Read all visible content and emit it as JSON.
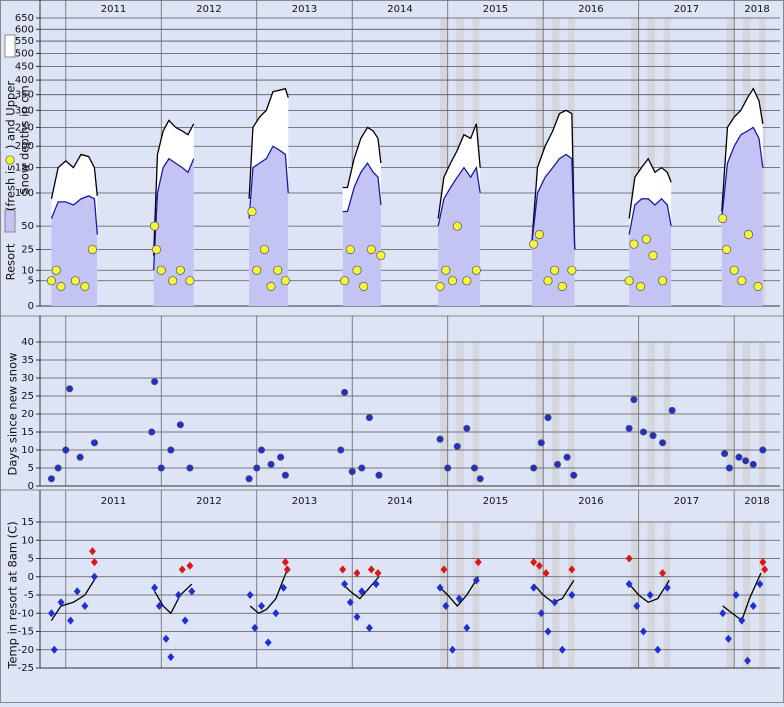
{
  "chart_data": [
    {
      "type": "line",
      "ylabel": [
        "Resort",
        "(fresh is",
        ")  and Upper",
        "Snow depths in cm"
      ],
      "scale": "sqrt",
      "xlim": [
        2010.73,
        2018.48
      ],
      "xticks": [
        2011,
        2012,
        2013,
        2014,
        2015,
        2016,
        2017,
        2018
      ],
      "ylim": [
        0,
        650
      ],
      "yticks": [
        0,
        5,
        10,
        25,
        50,
        100,
        150,
        200,
        250,
        300,
        350,
        400,
        450,
        500,
        550,
        600,
        650
      ],
      "grid": true,
      "highlight_bands": [
        [
          2014.92,
          2015.0
        ],
        [
          2015.09,
          2015.17
        ],
        [
          2015.26,
          2015.33
        ],
        [
          2015.92,
          2016.0
        ],
        [
          2016.09,
          2016.17
        ],
        [
          2016.26,
          2016.33
        ],
        [
          2016.92,
          2017.0
        ],
        [
          2017.09,
          2017.17
        ],
        [
          2017.26,
          2017.33
        ],
        [
          2017.92,
          2018.0
        ],
        [
          2018.09,
          2018.17
        ],
        [
          2018.26,
          2018.33
        ]
      ],
      "x": [
        2010.85,
        2010.92,
        2011.0,
        2011.08,
        2011.16,
        2011.24,
        2011.3,
        2011.33,
        2011.6,
        2011.92,
        2011.96,
        2012.02,
        2012.08,
        2012.15,
        2012.22,
        2012.28,
        2012.34,
        2012.6,
        2012.92,
        2012.96,
        2013.03,
        2013.1,
        2013.17,
        2013.24,
        2013.3,
        2013.33,
        2013.6,
        2013.9,
        2013.95,
        2014.02,
        2014.09,
        2014.16,
        2014.22,
        2014.27,
        2014.3,
        2014.6,
        2014.9,
        2014.96,
        2015.03,
        2015.1,
        2015.17,
        2015.24,
        2015.3,
        2015.34,
        2015.6,
        2015.88,
        2015.94,
        2016.02,
        2016.1,
        2016.17,
        2016.24,
        2016.3,
        2016.33,
        2016.6,
        2016.9,
        2016.96,
        2017.03,
        2017.1,
        2017.17,
        2017.24,
        2017.3,
        2017.34,
        2017.6,
        2017.87,
        2017.93,
        2018.0,
        2018.07,
        2018.14,
        2018.2,
        2018.26,
        2018.3
      ],
      "series": [
        {
          "type": "area",
          "color": "#000000",
          "fill": "#ffffff",
          "values": [
            90,
            150,
            165,
            150,
            180,
            175,
            150,
            95,
            null,
            20,
            180,
            240,
            270,
            250,
            240,
            230,
            260,
            null,
            90,
            250,
            280,
            300,
            360,
            365,
            370,
            340,
            null,
            110,
            110,
            170,
            220,
            250,
            240,
            220,
            160,
            null,
            60,
            130,
            160,
            190,
            230,
            220,
            260,
            150,
            null,
            30,
            150,
            200,
            240,
            290,
            300,
            290,
            25,
            null,
            60,
            130,
            150,
            170,
            140,
            150,
            140,
            120,
            null,
            70,
            250,
            280,
            300,
            340,
            370,
            330,
            260
          ]
        },
        {
          "type": "area",
          "color": "#1a1aa8",
          "fill": "#c4c4f4",
          "values": [
            60,
            85,
            85,
            80,
            90,
            95,
            90,
            40,
            null,
            10,
            100,
            150,
            170,
            160,
            150,
            140,
            170,
            null,
            60,
            150,
            160,
            170,
            200,
            190,
            180,
            100,
            null,
            70,
            70,
            110,
            140,
            160,
            140,
            130,
            80,
            null,
            50,
            90,
            110,
            130,
            150,
            130,
            150,
            100,
            null,
            30,
            100,
            130,
            150,
            170,
            180,
            170,
            25,
            null,
            40,
            80,
            90,
            90,
            80,
            90,
            80,
            50,
            null,
            60,
            160,
            200,
            230,
            240,
            250,
            220,
            150
          ]
        },
        {
          "type": "scatter",
          "marker": "circle",
          "color": "#f5f53a",
          "x": [
            2010.85,
            2010.9,
            2010.95,
            2011.1,
            2011.2,
            2011.28,
            2011.93,
            2011.95,
            2012.0,
            2012.12,
            2012.2,
            2012.3,
            2012.95,
            2013.0,
            2013.08,
            2013.15,
            2013.22,
            2013.3,
            2013.92,
            2013.98,
            2014.05,
            2014.12,
            2014.2,
            2014.3,
            2014.92,
            2014.98,
            2015.05,
            2015.1,
            2015.2,
            2015.3,
            2015.9,
            2015.96,
            2016.05,
            2016.12,
            2016.2,
            2016.3,
            2016.9,
            2016.95,
            2017.02,
            2017.08,
            2017.15,
            2017.25,
            2017.88,
            2017.92,
            2018.0,
            2018.08,
            2018.15,
            2018.25
          ],
          "values": [
            5,
            10,
            3,
            5,
            3,
            25,
            50,
            25,
            10,
            5,
            10,
            5,
            70,
            10,
            25,
            3,
            10,
            5,
            5,
            25,
            10,
            3,
            25,
            20,
            3,
            10,
            5,
            50,
            5,
            10,
            30,
            40,
            5,
            10,
            3,
            10,
            5,
            30,
            3,
            35,
            20,
            5,
            60,
            25,
            10,
            5,
            40,
            3
          ]
        }
      ]
    },
    {
      "type": "scatter",
      "ylabel": [
        "Days since new snow"
      ],
      "show_xtick_labels": false,
      "xlim": [
        2010.73,
        2018.48
      ],
      "xticks": [
        2011,
        2012,
        2013,
        2014,
        2015,
        2016,
        2017,
        2018
      ],
      "ylim": [
        0,
        40
      ],
      "yticks": [
        0,
        5,
        10,
        15,
        20,
        25,
        30,
        35,
        40
      ],
      "grid": true,
      "highlight_bands": [
        [
          2014.92,
          2015.0
        ],
        [
          2015.09,
          2015.17
        ],
        [
          2015.26,
          2015.33
        ],
        [
          2015.92,
          2016.0
        ],
        [
          2016.09,
          2016.17
        ],
        [
          2016.26,
          2016.33
        ],
        [
          2016.92,
          2017.0
        ],
        [
          2017.09,
          2017.17
        ],
        [
          2017.26,
          2017.33
        ],
        [
          2017.92,
          2018.0
        ],
        [
          2018.09,
          2018.17
        ],
        [
          2018.26,
          2018.33
        ]
      ],
      "series": [
        {
          "type": "scatter",
          "marker": "circle",
          "color": "#1f2fd0",
          "x": [
            2010.85,
            2010.92,
            2011.0,
            2011.04,
            2011.15,
            2011.3,
            2011.9,
            2011.93,
            2012.0,
            2012.1,
            2012.2,
            2012.3,
            2012.92,
            2013.0,
            2013.05,
            2013.15,
            2013.25,
            2013.3,
            2013.88,
            2013.92,
            2014.0,
            2014.1,
            2014.18,
            2014.28,
            2014.92,
            2015.0,
            2015.1,
            2015.2,
            2015.28,
            2015.34,
            2015.9,
            2015.98,
            2016.05,
            2016.15,
            2016.25,
            2016.32,
            2016.9,
            2016.95,
            2017.05,
            2017.15,
            2017.25,
            2017.35,
            2017.9,
            2017.95,
            2018.05,
            2018.12,
            2018.2,
            2018.3
          ],
          "values": [
            2,
            5,
            10,
            27,
            8,
            12,
            15,
            29,
            5,
            10,
            17,
            5,
            2,
            5,
            10,
            6,
            8,
            3,
            10,
            26,
            4,
            5,
            19,
            3,
            13,
            5,
            11,
            16,
            5,
            2,
            5,
            12,
            19,
            6,
            8,
            3,
            16,
            24,
            15,
            14,
            12,
            21,
            9,
            5,
            8,
            7,
            6,
            10
          ]
        }
      ]
    },
    {
      "type": "scatter",
      "ylabel": [
        "Temp in resort at 8am (C)"
      ],
      "xlim": [
        2010.73,
        2018.48
      ],
      "xticks": [
        2011,
        2012,
        2013,
        2014,
        2015,
        2016,
        2017,
        2018
      ],
      "ylim": [
        -25,
        15
      ],
      "yticks": [
        -25,
        -20,
        -15,
        -10,
        -5,
        0,
        5,
        10,
        15
      ],
      "grid": true,
      "highlight_bands": [
        [
          2014.92,
          2015.0
        ],
        [
          2015.09,
          2015.17
        ],
        [
          2015.26,
          2015.33
        ],
        [
          2015.92,
          2016.0
        ],
        [
          2016.09,
          2016.17
        ],
        [
          2016.26,
          2016.33
        ],
        [
          2016.92,
          2017.0
        ],
        [
          2017.09,
          2017.17
        ],
        [
          2017.26,
          2017.33
        ],
        [
          2017.92,
          2018.0
        ],
        [
          2018.09,
          2018.17
        ],
        [
          2018.26,
          2018.33
        ]
      ],
      "series": [
        {
          "type": "scatter",
          "marker": "diamond",
          "color": "#1f2fd0",
          "x": [
            2010.85,
            2010.88,
            2010.95,
            2011.05,
            2011.12,
            2011.2,
            2011.3,
            2011.93,
            2011.98,
            2012.05,
            2012.1,
            2012.18,
            2012.25,
            2012.32,
            2012.93,
            2012.98,
            2013.05,
            2013.12,
            2013.2,
            2013.28,
            2013.92,
            2013.98,
            2014.05,
            2014.1,
            2014.18,
            2014.25,
            2014.92,
            2014.98,
            2015.05,
            2015.12,
            2015.2,
            2015.3,
            2015.9,
            2015.98,
            2016.05,
            2016.12,
            2016.2,
            2016.3,
            2016.9,
            2016.98,
            2017.05,
            2017.12,
            2017.2,
            2017.3,
            2017.88,
            2017.94,
            2018.02,
            2018.08,
            2018.14,
            2018.2,
            2018.27
          ],
          "values": [
            -10,
            -20,
            -7,
            -12,
            -4,
            -8,
            0,
            -3,
            -8,
            -17,
            -22,
            -5,
            -12,
            -4,
            -5,
            -14,
            -8,
            -18,
            -10,
            -3,
            -2,
            -7,
            -11,
            -4,
            -14,
            -2,
            -3,
            -8,
            -20,
            -6,
            -14,
            -1,
            -3,
            -10,
            -15,
            -7,
            -20,
            -5,
            -2,
            -8,
            -15,
            -5,
            -20,
            -3,
            -10,
            -17,
            -5,
            -12,
            -23,
            -8,
            -2
          ]
        },
        {
          "type": "scatter",
          "marker": "diamond",
          "color": "#d81818",
          "x": [
            2011.28,
            2011.3,
            2012.22,
            2012.3,
            2013.3,
            2013.32,
            2013.9,
            2014.05,
            2014.2,
            2014.27,
            2014.96,
            2015.32,
            2015.9,
            2015.96,
            2016.03,
            2016.3,
            2016.9,
            2017.25,
            2018.3,
            2018.32
          ],
          "values": [
            7,
            4,
            2,
            3,
            4,
            2,
            2,
            1,
            2,
            1,
            2,
            4,
            4,
            3,
            1,
            2,
            5,
            1,
            4,
            2
          ]
        },
        {
          "type": "line",
          "color": "#000000",
          "x": [
            2010.85,
            2010.95,
            2011.08,
            2011.2,
            2011.32,
            2011.6,
            2011.93,
            2012.02,
            2012.1,
            2012.2,
            2012.32,
            2012.6,
            2012.93,
            2013.02,
            2013.1,
            2013.2,
            2013.32,
            2013.6,
            2013.9,
            2013.98,
            2014.08,
            2014.18,
            2014.28,
            2014.6,
            2014.92,
            2015.0,
            2015.1,
            2015.2,
            2015.32,
            2015.6,
            2015.9,
            2016.0,
            2016.1,
            2016.2,
            2016.32,
            2016.6,
            2016.9,
            2017.0,
            2017.1,
            2017.2,
            2017.32,
            2017.6,
            2017.88,
            2017.98,
            2018.08,
            2018.16,
            2018.28
          ],
          "values": [
            -12,
            -8,
            -7,
            -5,
            0,
            null,
            -4,
            -8,
            -10,
            -5,
            -2,
            null,
            -8,
            -10,
            -9,
            -6,
            2,
            null,
            -2,
            -4,
            -6,
            -3,
            0,
            null,
            -3,
            -5,
            -8,
            -5,
            0,
            null,
            -2,
            -5,
            -7,
            -6,
            -1,
            null,
            -2,
            -5,
            -7,
            -6,
            -1,
            null,
            -8,
            -10,
            -12,
            -6,
            1
          ]
        }
      ]
    }
  ]
}
